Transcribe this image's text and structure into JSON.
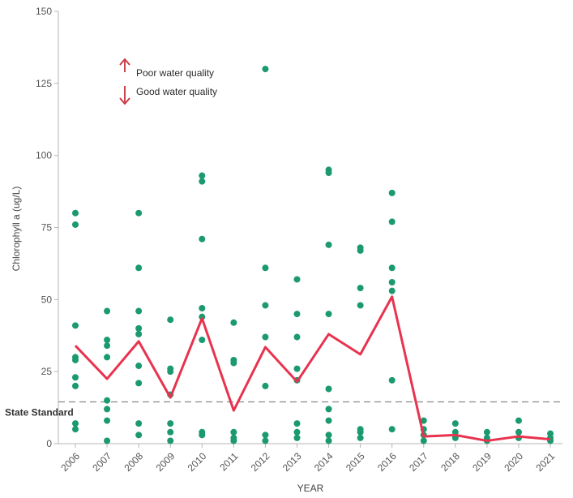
{
  "chart_data": {
    "type": "scatter",
    "title": "",
    "xlabel": "YEAR",
    "ylabel": "Chlorophyll a (ug/L)",
    "ylim": [
      0,
      150
    ],
    "yticks": [
      0,
      25,
      50,
      75,
      100,
      125,
      150
    ],
    "grid": false,
    "categories": [
      "2006",
      "2007",
      "2008",
      "2009",
      "2010",
      "2011",
      "2012",
      "2013",
      "2014",
      "2015",
      "2016",
      "2017",
      "2018",
      "2019",
      "2020",
      "2021"
    ],
    "points": [
      {
        "x": "2006",
        "values": [
          80,
          76,
          41,
          30,
          29,
          23,
          20,
          7,
          5
        ]
      },
      {
        "x": "2007",
        "values": [
          46,
          36,
          34,
          30,
          15,
          12,
          8,
          1
        ]
      },
      {
        "x": "2008",
        "values": [
          80,
          61,
          46,
          40,
          38,
          27,
          21,
          7,
          3
        ]
      },
      {
        "x": "2009",
        "values": [
          43,
          26,
          25,
          17,
          7,
          4,
          1
        ]
      },
      {
        "x": "2010",
        "values": [
          93,
          91,
          71,
          47,
          44,
          36,
          4,
          3
        ]
      },
      {
        "x": "2011",
        "values": [
          42,
          29,
          28,
          4,
          2,
          1
        ]
      },
      {
        "x": "2012",
        "values": [
          130,
          61,
          48,
          37,
          20,
          3,
          1
        ]
      },
      {
        "x": "2013",
        "values": [
          57,
          45,
          37,
          26,
          22,
          7,
          4,
          2
        ]
      },
      {
        "x": "2014",
        "values": [
          95,
          94,
          69,
          45,
          19,
          12,
          8,
          3,
          1
        ]
      },
      {
        "x": "2015",
        "values": [
          68,
          67,
          54,
          48,
          5,
          4,
          2
        ]
      },
      {
        "x": "2016",
        "values": [
          87,
          77,
          61,
          56,
          53,
          22,
          5
        ]
      },
      {
        "x": "2017",
        "values": [
          8,
          5,
          3,
          1
        ]
      },
      {
        "x": "2018",
        "values": [
          7,
          4,
          2
        ]
      },
      {
        "x": "2019",
        "values": [
          4,
          2,
          1
        ]
      },
      {
        "x": "2020",
        "values": [
          8,
          4,
          2
        ]
      },
      {
        "x": "2021",
        "values": [
          3.5,
          2,
          1
        ]
      }
    ],
    "series": [
      {
        "values": [
          34,
          22.5,
          35.5,
          16,
          43.5,
          11.5,
          33.5,
          21.5,
          38,
          31,
          51,
          2.5,
          3,
          1,
          2.5,
          1.5
        ]
      }
    ],
    "reference_line": {
      "value": 14.5,
      "label": "State Standard"
    },
    "annotations": [
      {
        "text": "Poor water quality",
        "arrow": "up"
      },
      {
        "text": "Good water quality",
        "arrow": "down"
      }
    ],
    "colors": {
      "points": "#1a9a6e",
      "line": "#e8334f",
      "arrows": "#c8303b",
      "reference": "#888888",
      "axis": "#b5b5b5"
    }
  }
}
